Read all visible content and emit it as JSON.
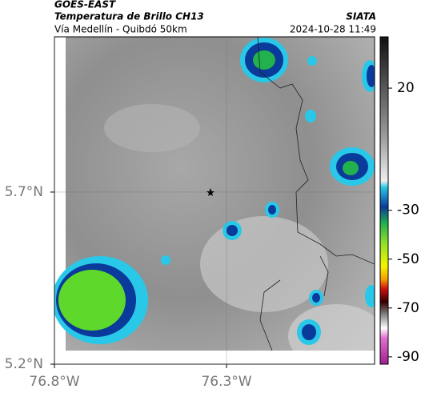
{
  "header": {
    "source": "GOES-EAST",
    "title": "Temperatura de Brillo CH13",
    "region": "Vía Medellín - Quibdó 50km",
    "agency": "SIATA",
    "datetime": "2024-10-28 11:49"
  },
  "map": {
    "lat_lim": [
      5.2,
      6.151
    ],
    "lon_lim": [
      -76.8,
      -75.87
    ],
    "lat_ticks": [
      {
        "value": 5.7,
        "label": "5.7°N"
      },
      {
        "value": 5.2,
        "label": "5.2°N"
      }
    ],
    "lon_ticks": [
      {
        "value": -76.8,
        "label": "76.8°W"
      },
      {
        "value": -76.3,
        "label": "76.3°W"
      }
    ],
    "colorbar": {
      "lim": [
        41,
        -93
      ],
      "ticks": [
        20,
        -30,
        -50,
        -70,
        -90
      ]
    }
  }
}
